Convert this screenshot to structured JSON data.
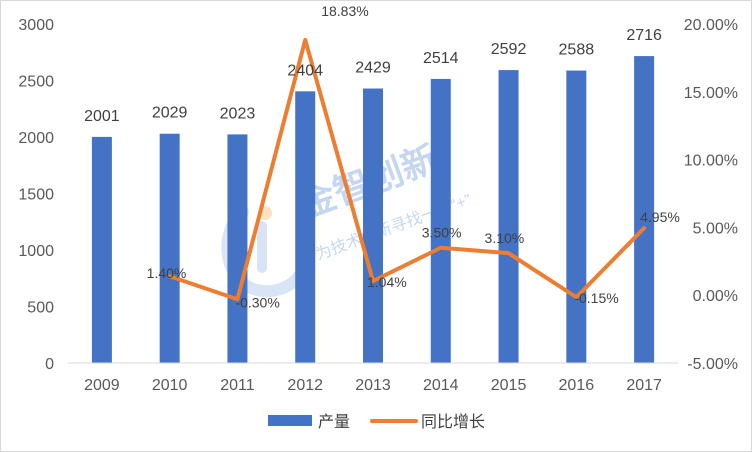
{
  "chart_data": {
    "type": "bar",
    "categories": [
      "2009",
      "2010",
      "2011",
      "2012",
      "2013",
      "2014",
      "2015",
      "2016",
      "2017"
    ],
    "series": [
      {
        "name": "产量",
        "type": "bar",
        "axis": "left",
        "values": [
          2001,
          2029,
          2023,
          2404,
          2429,
          2514,
          2592,
          2588,
          2716
        ],
        "labels": [
          "2001",
          "2029",
          "2023",
          "2404",
          "2429",
          "2514",
          "2592",
          "2588",
          "2716"
        ],
        "color": "#4472C4"
      },
      {
        "name": "同比增长",
        "type": "line",
        "axis": "right",
        "values": [
          null,
          1.4,
          -0.3,
          18.83,
          1.04,
          3.5,
          3.1,
          -0.15,
          4.95
        ],
        "labels": [
          "",
          "1.40%",
          "-0.30%",
          "18.83%",
          "1.04%",
          "3.50%",
          "3.10%",
          "-0.15%",
          "4.95%"
        ],
        "color": "#ED7D31"
      }
    ],
    "yleft": {
      "ylim": [
        0,
        3000
      ],
      "ticks": [
        0,
        500,
        1000,
        1500,
        2000,
        2500,
        3000
      ],
      "tick_labels": [
        "0",
        "500",
        "1000",
        "1500",
        "2000",
        "2500",
        "3000"
      ]
    },
    "yright": {
      "ylim": [
        -5,
        20
      ],
      "ticks": [
        -5,
        0,
        5,
        10,
        15,
        20
      ],
      "tick_labels": [
        "-5.00%",
        "0.00%",
        "5.00%",
        "10.00%",
        "15.00%",
        "20.00%"
      ]
    },
    "grid": false,
    "legend": "bottom"
  },
  "watermark": {
    "title": "金智创新",
    "subtitle": "为技术创新寻找一个“+”"
  }
}
